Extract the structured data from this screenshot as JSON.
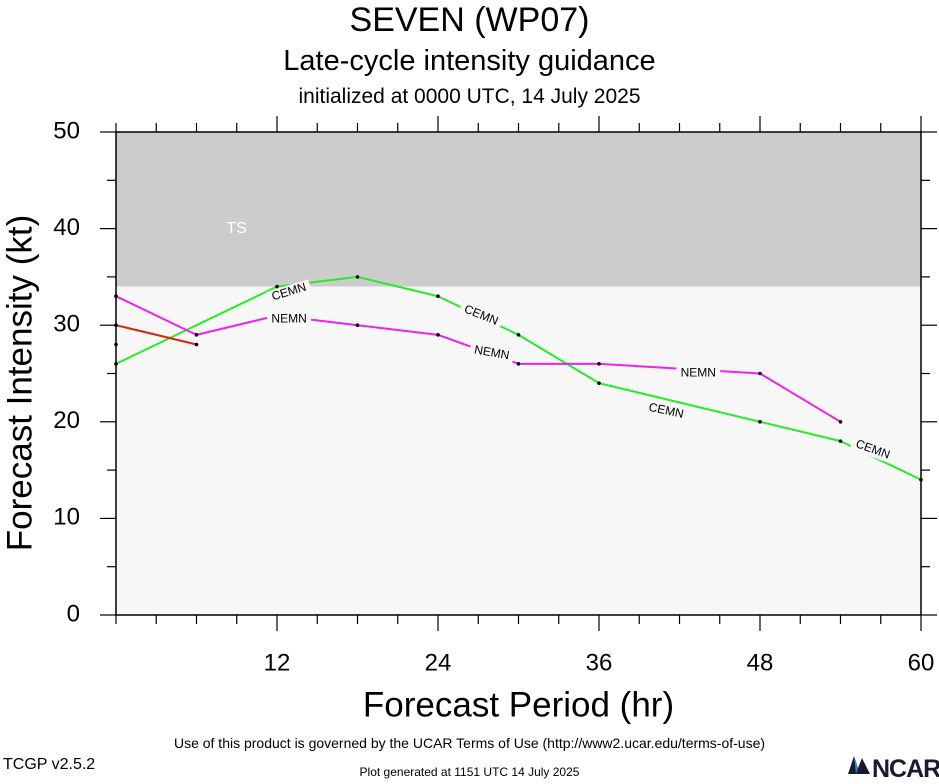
{
  "chart_data": {
    "type": "line",
    "title": "SEVEN (WP07)",
    "subtitle": "Late-cycle intensity guidance",
    "subtitle2": "initialized at 0000 UTC, 14 July 2025",
    "xlabel": "Forecast Period (hr)",
    "ylabel": "Forecast Intensity (kt)",
    "xlim": [
      0,
      60
    ],
    "ylim": [
      0,
      50
    ],
    "x_ticks": [
      12,
      24,
      36,
      48,
      60
    ],
    "y_ticks": [
      0,
      10,
      20,
      30,
      40,
      50
    ],
    "bands": [
      {
        "label": "TS",
        "from": 34,
        "to": 50,
        "color": "#cccccc"
      },
      {
        "label": "",
        "from": 0,
        "to": 34,
        "color": "#f7f7f7"
      }
    ],
    "series": [
      {
        "name": "CEMN",
        "color": "#22ee22",
        "x": [
          0,
          12,
          18,
          24,
          30,
          36,
          48,
          54,
          60
        ],
        "y": [
          26,
          34,
          35,
          33,
          29,
          24,
          20,
          18,
          14
        ],
        "labels": [
          {
            "text": "CEMN",
            "x": 12.9,
            "y": 33.4,
            "angle": -17
          },
          {
            "text": "CEMN",
            "x": 27.2,
            "y": 31.0,
            "angle": 22
          },
          {
            "text": "CEMN",
            "x": 41.0,
            "y": 21.1,
            "angle": 12
          },
          {
            "text": "CEMN",
            "x": 56.4,
            "y": 17.1,
            "angle": 20
          }
        ]
      },
      {
        "name": "NEMN",
        "color": "#ee22ee",
        "x": [
          0,
          6,
          12,
          18,
          24,
          30,
          36,
          48,
          54
        ],
        "y": [
          33,
          29,
          31,
          30,
          29,
          26,
          26,
          25,
          20
        ],
        "labels": [
          {
            "text": "NEMN",
            "x": 12.9,
            "y": 30.6,
            "angle": 0
          },
          {
            "text": "NEMN",
            "x": 28.0,
            "y": 27.1,
            "angle": 10
          },
          {
            "text": "NEMN",
            "x": 43.4,
            "y": 25.0,
            "angle": 0
          }
        ]
      },
      {
        "name": "",
        "color": "#dd2211",
        "x": [
          0,
          6
        ],
        "y": [
          30,
          28
        ],
        "labels": []
      }
    ],
    "extra_points": [
      {
        "x": 0,
        "y": 28
      }
    ]
  },
  "footer": {
    "terms": "Use of this product is governed by the UCAR Terms of Use (http://www2.ucar.edu/terms-of-use)",
    "version": "TCGP v2.5.2",
    "generated": "Plot generated at 1151 UTC   14 July 2025",
    "logo_text": "NCAR"
  }
}
